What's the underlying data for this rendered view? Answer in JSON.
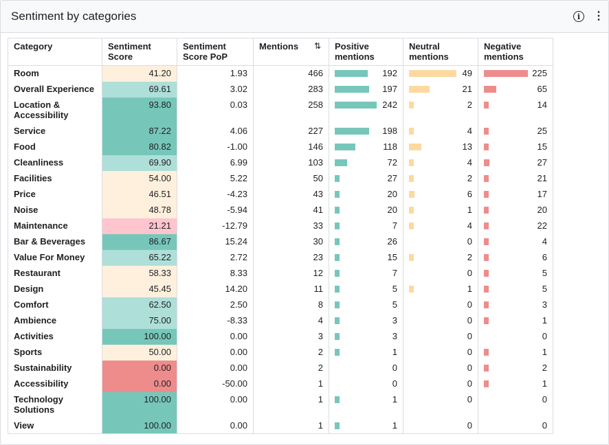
{
  "header": {
    "title": "Sentiment by categories",
    "info_icon": "info-icon",
    "more_icon": "more-vert-icon"
  },
  "colors": {
    "pos_bar": "#76c7ba",
    "neu_bar": "#fdd9a0",
    "neg_bar": "#ee8c8c",
    "score_high": "#76c7ba",
    "score_good": "#aedfd8",
    "score_mid": "#fef0dd",
    "score_low": "#ffc5ce",
    "score_zero": "#ee8c8c"
  },
  "table": {
    "columns": {
      "category": "Category",
      "sentiment_score": "Sentiment Score",
      "sentiment_score_pop": "Sentiment Score PoP",
      "mentions": "Mentions",
      "positive": "Positive mentions",
      "neutral": "Neutral mentions",
      "negative": "Negative mentions"
    },
    "sort_icon": "sort-descending-icon",
    "rows": [
      {
        "category": "Room",
        "score": "41.20",
        "tier": "mid",
        "pop": "1.93",
        "mentions": "466",
        "positive": 192,
        "neutral": 49,
        "negative": 225
      },
      {
        "category": "Overall Experience",
        "score": "69.61",
        "tier": "good",
        "pop": "3.02",
        "mentions": "283",
        "positive": 197,
        "neutral": 21,
        "negative": 65
      },
      {
        "category": "Location & Accessibility",
        "score": "93.80",
        "tier": "high",
        "pop": "0.03",
        "mentions": "258",
        "positive": 242,
        "neutral": 2,
        "negative": 14,
        "tall": true
      },
      {
        "category": "Service",
        "score": "87.22",
        "tier": "high",
        "pop": "4.06",
        "mentions": "227",
        "positive": 198,
        "neutral": 4,
        "negative": 25
      },
      {
        "category": "Food",
        "score": "80.82",
        "tier": "high",
        "pop": "-1.00",
        "mentions": "146",
        "positive": 118,
        "neutral": 13,
        "negative": 15
      },
      {
        "category": "Cleanliness",
        "score": "69.90",
        "tier": "good",
        "pop": "6.99",
        "mentions": "103",
        "positive": 72,
        "neutral": 4,
        "negative": 27
      },
      {
        "category": "Facilities",
        "score": "54.00",
        "tier": "mid",
        "pop": "5.22",
        "mentions": "50",
        "positive": 27,
        "neutral": 2,
        "negative": 21
      },
      {
        "category": "Price",
        "score": "46.51",
        "tier": "mid",
        "pop": "-4.23",
        "mentions": "43",
        "positive": 20,
        "neutral": 6,
        "negative": 17
      },
      {
        "category": "Noise",
        "score": "48.78",
        "tier": "mid",
        "pop": "-5.94",
        "mentions": "41",
        "positive": 20,
        "neutral": 1,
        "negative": 20
      },
      {
        "category": "Maintenance",
        "score": "21.21",
        "tier": "low",
        "pop": "-12.79",
        "mentions": "33",
        "positive": 7,
        "neutral": 4,
        "negative": 22
      },
      {
        "category": "Bar & Beverages",
        "score": "86.67",
        "tier": "high",
        "pop": "15.24",
        "mentions": "30",
        "positive": 26,
        "neutral": 0,
        "negative": 4
      },
      {
        "category": "Value For Money",
        "score": "65.22",
        "tier": "good",
        "pop": "2.72",
        "mentions": "23",
        "positive": 15,
        "neutral": 2,
        "negative": 6
      },
      {
        "category": "Restaurant",
        "score": "58.33",
        "tier": "mid",
        "pop": "8.33",
        "mentions": "12",
        "positive": 7,
        "neutral": 0,
        "negative": 5
      },
      {
        "category": "Design",
        "score": "45.45",
        "tier": "mid",
        "pop": "14.20",
        "mentions": "11",
        "positive": 5,
        "neutral": 1,
        "negative": 5
      },
      {
        "category": "Comfort",
        "score": "62.50",
        "tier": "good",
        "pop": "2.50",
        "mentions": "8",
        "positive": 5,
        "neutral": 0,
        "negative": 3
      },
      {
        "category": "Ambience",
        "score": "75.00",
        "tier": "good",
        "pop": "-8.33",
        "mentions": "4",
        "positive": 3,
        "neutral": 0,
        "negative": 1
      },
      {
        "category": "Activities",
        "score": "100.00",
        "tier": "high",
        "pop": "0.00",
        "mentions": "3",
        "positive": 3,
        "neutral": 0,
        "negative": 0
      },
      {
        "category": "Sports",
        "score": "50.00",
        "tier": "mid",
        "pop": "0.00",
        "mentions": "2",
        "positive": 1,
        "neutral": 0,
        "negative": 1
      },
      {
        "category": "Sustainability",
        "score": "0.00",
        "tier": "zero",
        "pop": "0.00",
        "mentions": "2",
        "positive": 0,
        "neutral": 0,
        "negative": 2
      },
      {
        "category": "Accessibility",
        "score": "0.00",
        "tier": "zero",
        "pop": "-50.00",
        "mentions": "1",
        "positive": 0,
        "neutral": 0,
        "negative": 1
      },
      {
        "category": "Technology Solutions",
        "score": "100.00",
        "tier": "high",
        "pop": "0.00",
        "mentions": "1",
        "positive": 1,
        "neutral": 0,
        "negative": 0,
        "tall": true
      },
      {
        "category": "View",
        "score": "100.00",
        "tier": "high",
        "pop": "0.00",
        "mentions": "1",
        "positive": 1,
        "neutral": 0,
        "negative": 0
      }
    ]
  }
}
